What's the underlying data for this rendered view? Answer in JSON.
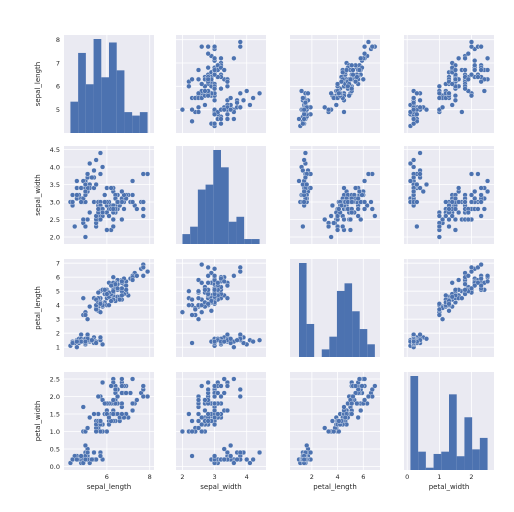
{
  "chart_data": {
    "type": "scatter",
    "kind": "pairplot",
    "variables": [
      "sepal_length",
      "sepal_width",
      "petal_length",
      "petal_width"
    ],
    "grid": true,
    "marker_color": "#4c72b0",
    "background_color": "#eaeaf2",
    "axis_ranges": {
      "sepal_length": [
        4.0,
        8.2
      ],
      "sepal_width": [
        1.8,
        4.6
      ],
      "petal_length": [
        0.3,
        7.3
      ],
      "petal_width": [
        -0.1,
        2.7
      ]
    },
    "ticks": {
      "sepal_length": [
        "6",
        "8"
      ],
      "sepal_width": [
        "2",
        "3",
        "4"
      ],
      "petal_length": [
        "2",
        "4",
        "6"
      ],
      "petal_width": [
        "0",
        "1",
        "2"
      ]
    },
    "row_ticks": {
      "sepal_length": [
        "5",
        "6",
        "7",
        "8"
      ],
      "sepal_width": [
        "2.0",
        "2.5",
        "3.0",
        "3.5",
        "4.0",
        "4.5"
      ],
      "petal_length": [
        "1",
        "2",
        "3",
        "4",
        "5",
        "6",
        "7"
      ],
      "petal_width": [
        "0.0",
        "0.5",
        "1.0",
        "1.5",
        "2.0",
        "2.5"
      ]
    },
    "histograms": {
      "sepal_length": {
        "bin_edges": [
          4.3,
          4.66,
          5.02,
          5.38,
          5.74,
          6.1,
          6.46,
          6.82,
          7.18,
          7.54,
          7.9
        ],
        "counts": [
          9,
          23,
          14,
          27,
          16,
          26,
          18,
          6,
          5,
          6
        ]
      },
      "sepal_width": {
        "bin_edges": [
          2.0,
          2.24,
          2.48,
          2.72,
          2.96,
          3.2,
          3.44,
          3.68,
          3.92,
          4.16,
          4.4
        ],
        "counts": [
          4,
          7,
          22,
          24,
          38,
          31,
          9,
          11,
          2,
          2
        ]
      },
      "petal_length": {
        "bin_edges": [
          1.0,
          1.59,
          2.18,
          2.77,
          3.36,
          3.95,
          4.54,
          5.13,
          5.72,
          6.31,
          6.9
        ],
        "counts": [
          37,
          13,
          0,
          3,
          8,
          26,
          29,
          18,
          11,
          5
        ]
      },
      "petal_width": {
        "bin_edges": [
          0.1,
          0.34,
          0.58,
          0.82,
          1.06,
          1.3,
          1.54,
          1.78,
          2.02,
          2.26,
          2.5
        ],
        "counts": [
          41,
          8,
          1,
          7,
          8,
          33,
          6,
          23,
          9,
          14
        ]
      }
    },
    "observations": [
      [
        5.1,
        3.5,
        1.4,
        0.2
      ],
      [
        4.9,
        3.0,
        1.4,
        0.2
      ],
      [
        4.7,
        3.2,
        1.3,
        0.2
      ],
      [
        4.6,
        3.1,
        1.5,
        0.2
      ],
      [
        5.0,
        3.6,
        1.4,
        0.2
      ],
      [
        5.4,
        3.9,
        1.7,
        0.4
      ],
      [
        4.6,
        3.4,
        1.4,
        0.3
      ],
      [
        5.0,
        3.4,
        1.5,
        0.2
      ],
      [
        4.4,
        2.9,
        1.4,
        0.2
      ],
      [
        4.9,
        3.1,
        1.5,
        0.1
      ],
      [
        5.4,
        3.7,
        1.5,
        0.2
      ],
      [
        4.8,
        3.4,
        1.6,
        0.2
      ],
      [
        4.8,
        3.0,
        1.4,
        0.1
      ],
      [
        4.3,
        3.0,
        1.1,
        0.1
      ],
      [
        5.8,
        4.0,
        1.2,
        0.2
      ],
      [
        5.7,
        4.4,
        1.5,
        0.4
      ],
      [
        5.4,
        3.9,
        1.3,
        0.4
      ],
      [
        5.1,
        3.5,
        1.4,
        0.3
      ],
      [
        5.7,
        3.8,
        1.7,
        0.3
      ],
      [
        5.1,
        3.8,
        1.5,
        0.3
      ],
      [
        5.4,
        3.4,
        1.7,
        0.2
      ],
      [
        5.1,
        3.7,
        1.5,
        0.4
      ],
      [
        4.6,
        3.6,
        1.0,
        0.2
      ],
      [
        5.1,
        3.3,
        1.7,
        0.5
      ],
      [
        4.8,
        3.4,
        1.9,
        0.2
      ],
      [
        5.0,
        3.0,
        1.6,
        0.2
      ],
      [
        5.0,
        3.4,
        1.6,
        0.4
      ],
      [
        5.2,
        3.5,
        1.5,
        0.2
      ],
      [
        5.2,
        3.4,
        1.4,
        0.2
      ],
      [
        4.7,
        3.2,
        1.6,
        0.2
      ],
      [
        4.8,
        3.1,
        1.6,
        0.2
      ],
      [
        5.4,
        3.4,
        1.5,
        0.4
      ],
      [
        5.2,
        4.1,
        1.5,
        0.1
      ],
      [
        5.5,
        4.2,
        1.4,
        0.2
      ],
      [
        4.9,
        3.1,
        1.5,
        0.2
      ],
      [
        5.0,
        3.2,
        1.2,
        0.2
      ],
      [
        5.5,
        3.5,
        1.3,
        0.2
      ],
      [
        4.9,
        3.6,
        1.4,
        0.1
      ],
      [
        4.4,
        3.0,
        1.3,
        0.2
      ],
      [
        5.1,
        3.4,
        1.5,
        0.2
      ],
      [
        5.0,
        3.5,
        1.3,
        0.3
      ],
      [
        4.5,
        2.3,
        1.3,
        0.3
      ],
      [
        4.4,
        3.2,
        1.3,
        0.2
      ],
      [
        5.0,
        3.5,
        1.6,
        0.6
      ],
      [
        5.1,
        3.8,
        1.9,
        0.4
      ],
      [
        4.8,
        3.0,
        1.4,
        0.3
      ],
      [
        5.1,
        3.8,
        1.6,
        0.2
      ],
      [
        4.6,
        3.2,
        1.4,
        0.2
      ],
      [
        5.3,
        3.7,
        1.5,
        0.2
      ],
      [
        5.0,
        3.3,
        1.4,
        0.2
      ],
      [
        7.0,
        3.2,
        4.7,
        1.4
      ],
      [
        6.4,
        3.2,
        4.5,
        1.5
      ],
      [
        6.9,
        3.1,
        4.9,
        1.5
      ],
      [
        5.5,
        2.3,
        4.0,
        1.3
      ],
      [
        6.5,
        2.8,
        4.6,
        1.5
      ],
      [
        5.7,
        2.8,
        4.5,
        1.3
      ],
      [
        6.3,
        3.3,
        4.7,
        1.6
      ],
      [
        4.9,
        2.4,
        3.3,
        1.0
      ],
      [
        6.6,
        2.9,
        4.6,
        1.3
      ],
      [
        5.2,
        2.7,
        3.9,
        1.4
      ],
      [
        5.0,
        2.0,
        3.5,
        1.0
      ],
      [
        5.9,
        3.0,
        4.2,
        1.5
      ],
      [
        6.0,
        2.2,
        4.0,
        1.0
      ],
      [
        6.1,
        2.9,
        4.7,
        1.4
      ],
      [
        5.6,
        2.9,
        3.6,
        1.3
      ],
      [
        6.7,
        3.1,
        4.4,
        1.4
      ],
      [
        5.6,
        3.0,
        4.5,
        1.5
      ],
      [
        5.8,
        2.7,
        4.1,
        1.0
      ],
      [
        6.2,
        2.2,
        4.5,
        1.5
      ],
      [
        5.6,
        2.5,
        3.9,
        1.1
      ],
      [
        5.9,
        3.2,
        4.8,
        1.8
      ],
      [
        6.1,
        2.8,
        4.0,
        1.3
      ],
      [
        6.3,
        2.5,
        4.9,
        1.5
      ],
      [
        6.1,
        2.8,
        4.7,
        1.2
      ],
      [
        6.4,
        2.9,
        4.3,
        1.3
      ],
      [
        6.6,
        3.0,
        4.4,
        1.4
      ],
      [
        6.8,
        2.8,
        4.8,
        1.4
      ],
      [
        6.7,
        3.0,
        5.0,
        1.7
      ],
      [
        6.0,
        2.9,
        4.5,
        1.5
      ],
      [
        5.7,
        2.6,
        3.5,
        1.0
      ],
      [
        5.5,
        2.4,
        3.8,
        1.1
      ],
      [
        5.5,
        2.4,
        3.7,
        1.0
      ],
      [
        5.8,
        2.7,
        3.9,
        1.2
      ],
      [
        6.0,
        2.7,
        5.1,
        1.6
      ],
      [
        5.4,
        3.0,
        4.5,
        1.5
      ],
      [
        6.0,
        3.4,
        4.5,
        1.6
      ],
      [
        6.7,
        3.1,
        4.7,
        1.5
      ],
      [
        6.3,
        2.3,
        4.4,
        1.3
      ],
      [
        5.6,
        3.0,
        4.1,
        1.3
      ],
      [
        5.5,
        2.5,
        4.0,
        1.3
      ],
      [
        5.5,
        2.6,
        4.4,
        1.2
      ],
      [
        6.1,
        3.0,
        4.6,
        1.4
      ],
      [
        5.8,
        2.6,
        4.0,
        1.2
      ],
      [
        5.0,
        2.3,
        3.3,
        1.0
      ],
      [
        5.6,
        2.7,
        4.2,
        1.3
      ],
      [
        5.7,
        3.0,
        4.2,
        1.2
      ],
      [
        5.7,
        2.9,
        4.2,
        1.3
      ],
      [
        6.2,
        2.9,
        4.3,
        1.3
      ],
      [
        5.1,
        2.5,
        3.0,
        1.1
      ],
      [
        5.7,
        2.8,
        4.1,
        1.3
      ],
      [
        6.3,
        3.3,
        6.0,
        2.5
      ],
      [
        5.8,
        2.7,
        5.1,
        1.9
      ],
      [
        7.1,
        3.0,
        5.9,
        2.1
      ],
      [
        6.3,
        2.9,
        5.6,
        1.8
      ],
      [
        6.5,
        3.0,
        5.8,
        2.2
      ],
      [
        7.6,
        3.0,
        6.6,
        2.1
      ],
      [
        4.9,
        2.5,
        4.5,
        1.7
      ],
      [
        7.3,
        2.9,
        6.3,
        1.8
      ],
      [
        6.7,
        2.5,
        5.8,
        1.8
      ],
      [
        7.2,
        3.6,
        6.1,
        2.5
      ],
      [
        6.5,
        3.2,
        5.1,
        2.0
      ],
      [
        6.4,
        2.7,
        5.3,
        1.9
      ],
      [
        6.8,
        3.0,
        5.5,
        2.1
      ],
      [
        5.7,
        2.5,
        5.0,
        2.0
      ],
      [
        5.8,
        2.8,
        5.1,
        2.4
      ],
      [
        6.4,
        3.2,
        5.3,
        2.3
      ],
      [
        6.5,
        3.0,
        5.5,
        1.8
      ],
      [
        7.7,
        3.8,
        6.7,
        2.2
      ],
      [
        7.7,
        2.6,
        6.9,
        2.3
      ],
      [
        6.0,
        2.2,
        5.0,
        1.5
      ],
      [
        6.9,
        3.2,
        5.7,
        2.3
      ],
      [
        5.6,
        2.8,
        4.9,
        2.0
      ],
      [
        7.7,
        2.8,
        6.7,
        2.0
      ],
      [
        6.3,
        2.7,
        4.9,
        1.8
      ],
      [
        6.7,
        3.3,
        5.7,
        2.1
      ],
      [
        7.2,
        3.2,
        6.0,
        1.8
      ],
      [
        6.2,
        2.8,
        4.8,
        1.8
      ],
      [
        6.1,
        3.0,
        4.9,
        1.8
      ],
      [
        6.4,
        2.8,
        5.6,
        2.1
      ],
      [
        7.2,
        3.0,
        5.8,
        1.6
      ],
      [
        7.4,
        2.8,
        6.1,
        1.9
      ],
      [
        7.9,
        3.8,
        6.4,
        2.0
      ],
      [
        6.4,
        2.8,
        5.6,
        2.2
      ],
      [
        6.3,
        2.8,
        5.1,
        1.5
      ],
      [
        6.1,
        2.6,
        5.6,
        1.4
      ],
      [
        7.7,
        3.0,
        6.1,
        2.3
      ],
      [
        6.3,
        3.4,
        5.6,
        2.4
      ],
      [
        6.4,
        3.1,
        5.5,
        1.8
      ],
      [
        6.0,
        3.0,
        4.8,
        1.8
      ],
      [
        6.9,
        3.1,
        5.4,
        2.1
      ],
      [
        6.7,
        3.1,
        5.6,
        2.4
      ],
      [
        6.9,
        3.1,
        5.1,
        2.3
      ],
      [
        5.8,
        2.7,
        5.1,
        1.9
      ],
      [
        6.8,
        3.2,
        5.9,
        2.3
      ],
      [
        6.7,
        3.3,
        5.7,
        2.5
      ],
      [
        6.7,
        3.0,
        5.2,
        2.3
      ],
      [
        6.3,
        2.5,
        5.0,
        1.9
      ],
      [
        6.5,
        3.0,
        5.2,
        2.0
      ],
      [
        6.2,
        3.4,
        5.4,
        2.3
      ],
      [
        5.9,
        3.0,
        5.1,
        1.8
      ]
    ]
  }
}
